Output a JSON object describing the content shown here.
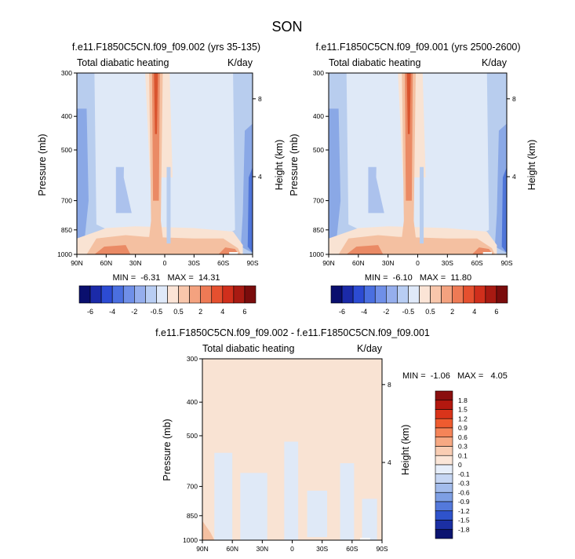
{
  "figure": {
    "title": "SON"
  },
  "colors": {
    "bg": "#ffffff",
    "ink": "#000000",
    "warm_band": "#f9e3d3",
    "warm_mid": "#f4c0a1",
    "warm_strong": "#ea8a65",
    "warm_core": "#d9542f",
    "cool_light": "#dfe9f7",
    "cool_mid": "#b8cdee",
    "cool_strong": "#8aa8e6",
    "cool_deep": "#4f75d8",
    "cool_core": "#1d3fbf"
  },
  "chart_data": [
    {
      "type": "heatmap",
      "title": "f.e11.F1850C5CN.f09_f09.002 (yrs 35-135)",
      "left_label": "Total diabatic heating",
      "right_label": "K/day",
      "xlabel": "",
      "ylabel": "Pressure (mb)",
      "ylabel_right": "Height (km)",
      "x_ticks": [
        "90N",
        "60N",
        "30N",
        "0",
        "30S",
        "60S",
        "90S"
      ],
      "y_ticks": [
        "300",
        "400",
        "500",
        "700",
        "850",
        "1000"
      ],
      "y_ticks_right": [
        "8",
        "4"
      ],
      "y_log_scale": true,
      "xlim": [
        90,
        -90
      ],
      "ylim": [
        1000,
        300
      ],
      "stats": "MIN =  -6.31   MAX =  14.31",
      "colorbar": {
        "orientation": "horizontal",
        "levels": [
          "-6",
          "-4",
          "-2",
          "-0.5",
          "0.5",
          "2",
          "4",
          "6"
        ],
        "colors": [
          "#0a0f6e",
          "#1b2aa8",
          "#2c4bd3",
          "#4a6fe0",
          "#6f8fe8",
          "#95aeed",
          "#b8cdf3",
          "#dfe9f9",
          "#fbe4d6",
          "#f8c6ab",
          "#f4a27f",
          "#ee7a55",
          "#e5502f",
          "#d02f1c",
          "#a81a12",
          "#7a0c0c"
        ]
      }
    },
    {
      "type": "heatmap",
      "title": "f.e11.F1850C5CN.f09_f09.001 (yrs 2500-2600)",
      "left_label": "Total diabatic heating",
      "right_label": "K/day",
      "xlabel": "",
      "ylabel": "Pressure (mb)",
      "ylabel_right": "Height (km)",
      "x_ticks": [
        "90N",
        "60N",
        "30N",
        "0",
        "30S",
        "60S",
        "90S"
      ],
      "y_ticks": [
        "300",
        "400",
        "500",
        "700",
        "850",
        "1000"
      ],
      "y_ticks_right": [
        "8",
        "4"
      ],
      "y_log_scale": true,
      "xlim": [
        90,
        -90
      ],
      "ylim": [
        1000,
        300
      ],
      "stats": "MIN =  -6.10   MAX =  11.80",
      "colorbar": {
        "orientation": "horizontal",
        "levels": [
          "-6",
          "-4",
          "-2",
          "-0.5",
          "0.5",
          "2",
          "4",
          "6"
        ],
        "colors": [
          "#0a0f6e",
          "#1b2aa8",
          "#2c4bd3",
          "#4a6fe0",
          "#6f8fe8",
          "#95aeed",
          "#b8cdf3",
          "#dfe9f9",
          "#fbe4d6",
          "#f8c6ab",
          "#f4a27f",
          "#ee7a55",
          "#e5502f",
          "#d02f1c",
          "#a81a12",
          "#7a0c0c"
        ]
      }
    },
    {
      "type": "heatmap",
      "title": "f.e11.F1850C5CN.f09_f09.002 - f.e11.F1850C5CN.f09_f09.001",
      "left_label": "Total diabatic heating",
      "right_label": "K/day",
      "xlabel": "",
      "ylabel": "Pressure (mb)",
      "ylabel_right": "Height (km)",
      "x_ticks": [
        "90N",
        "60N",
        "30N",
        "0",
        "30S",
        "60S",
        "90S"
      ],
      "y_ticks": [
        "300",
        "400",
        "500",
        "700",
        "850",
        "1000"
      ],
      "y_ticks_right": [
        "8",
        "4"
      ],
      "y_log_scale": true,
      "xlim": [
        90,
        -90
      ],
      "ylim": [
        1000,
        300
      ],
      "stats": "MIN =  -1.06   MAX =   4.05",
      "colorbar": {
        "orientation": "vertical",
        "levels": [
          "1.8",
          "1.5",
          "1.2",
          "0.9",
          "0.6",
          "0.3",
          "0.1",
          "0",
          "-0.1",
          "-0.3",
          "-0.6",
          "-0.9",
          "-1.2",
          "-1.5",
          "-1.8"
        ],
        "colors": [
          "#8a0f0f",
          "#b3180f",
          "#d9341a",
          "#ef5b2f",
          "#f58458",
          "#f7a983",
          "#f9cdb3",
          "#fbe6d8",
          "#e6eefa",
          "#c6d6f3",
          "#a3bcec",
          "#7e9fe4",
          "#5479db",
          "#2f53cc",
          "#1b2fa3",
          "#0b1470"
        ]
      }
    }
  ]
}
